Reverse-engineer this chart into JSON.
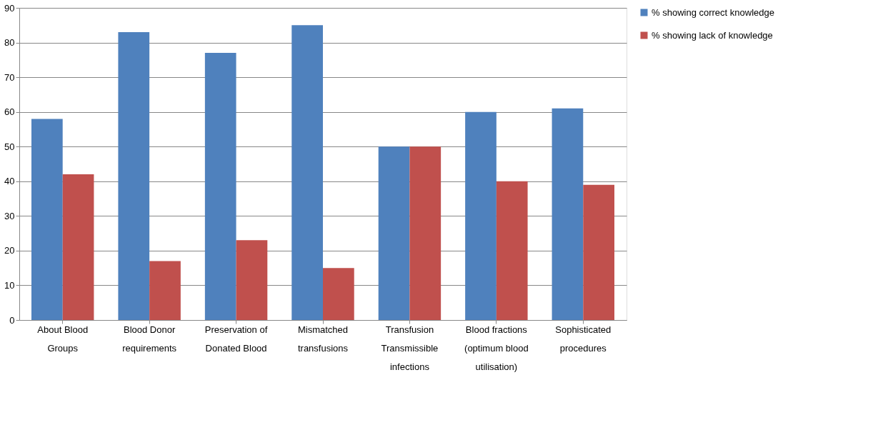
{
  "chart_data": {
    "type": "bar",
    "categories": [
      "About Blood Groups",
      "Blood Donor requirements",
      "Preservation of Donated Blood",
      "Mismatched transfusions",
      "Transfusion Transmissible infections",
      "Blood fractions (optimum blood utilisation)",
      "Sophisticated procedures"
    ],
    "series": [
      {
        "name": "% showing correct knowledge",
        "color": "#4f81bd",
        "values": [
          58,
          83,
          77,
          85,
          50,
          60,
          61
        ]
      },
      {
        "name": "% showing lack of knowledge",
        "color": "#c0504d",
        "values": [
          42,
          17,
          23,
          15,
          50,
          40,
          39
        ]
      }
    ],
    "ylim": [
      0,
      90
    ],
    "yticks": [
      0,
      10,
      20,
      30,
      40,
      50,
      60,
      70,
      80,
      90
    ],
    "grid": "y",
    "legend": "right"
  }
}
